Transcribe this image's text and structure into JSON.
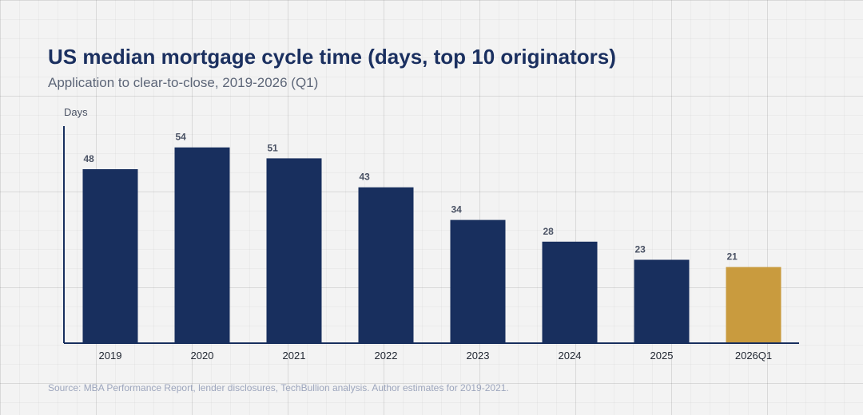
{
  "title": "US median mortgage cycle time (days, top 10 originators)",
  "subtitle": "Application to clear-to-close, 2019-2026 (Q1)",
  "source": "Source: MBA Performance Report, lender disclosures, TechBullion analysis. Author estimates for 2019-2021.",
  "colors": {
    "bar": "#182f5e",
    "highlight": "#c99b3e",
    "axis": "#182f5e"
  },
  "chart_data": {
    "type": "bar",
    "title": "US median mortgage cycle time (days, top 10 originators)",
    "subtitle": "Application to clear-to-close, 2019-2026 (Q1)",
    "ylabel": "Days",
    "xlabel": "",
    "categories": [
      "2019",
      "2020",
      "2021",
      "2022",
      "2023",
      "2024",
      "2025",
      "2026Q1"
    ],
    "values": [
      48,
      54,
      51,
      43,
      34,
      28,
      23,
      21
    ],
    "highlighted_category": "2026Q1",
    "ylim": [
      0,
      60
    ],
    "grid": false,
    "data_labels": true
  }
}
